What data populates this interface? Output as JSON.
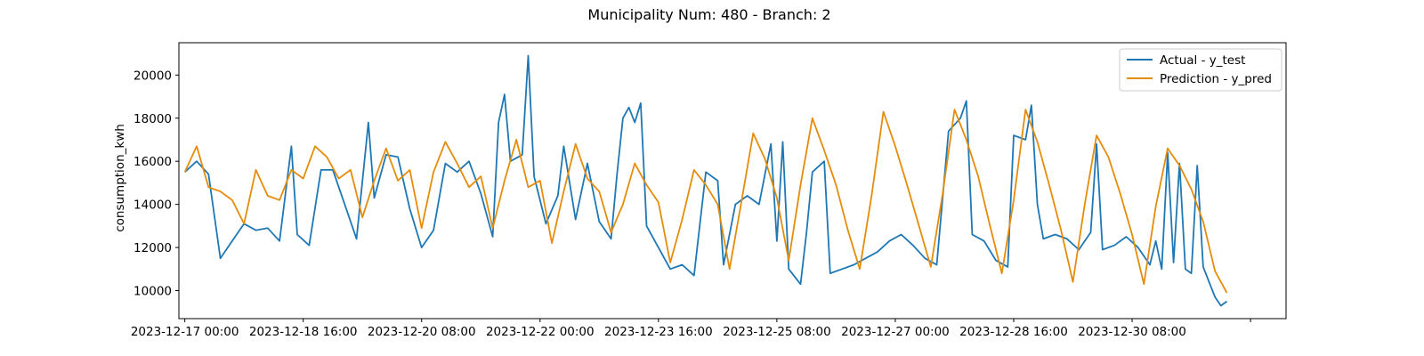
{
  "chart_data": {
    "type": "line",
    "title": "Municipality Num: 480 - Branch: 2",
    "xlabel": "",
    "ylabel": "consumption_kwh",
    "x_range": [
      "2023-12-16 22:00",
      "2024-01-01 12:00"
    ],
    "ylim": [
      8700,
      21500
    ],
    "x_tick_labels": [
      "2023-12-17 00:00",
      "2023-12-18 16:00",
      "2023-12-20 08:00",
      "2023-12-22 00:00",
      "2023-12-23 16:00",
      "2023-12-25 08:00",
      "2023-12-27 00:00",
      "2023-12-28 16:00",
      "2023-12-30 08:00",
      ""
    ],
    "x_tick_values": [
      "2023-12-17 00:00",
      "2023-12-18 16:00",
      "2023-12-20 08:00",
      "2023-12-22 00:00",
      "2023-12-23 16:00",
      "2023-12-25 08:00",
      "2023-12-27 00:00",
      "2023-12-28 16:00",
      "2023-12-30 08:00",
      "2024-01-01 00:00"
    ],
    "y_ticks": [
      10000,
      12000,
      14000,
      16000,
      18000,
      20000
    ],
    "y_tick_labels": [
      "10000",
      "12000",
      "14000",
      "16000",
      "18000",
      "20000"
    ],
    "grid": false,
    "legend_position": "top-right",
    "series": [
      {
        "name": "Actual - y_test",
        "color": "#1f77b4",
        "points": [
          [
            "2023-12-17 00:00",
            15500
          ],
          [
            "2023-12-17 04:00",
            16000
          ],
          [
            "2023-12-17 08:00",
            15400
          ],
          [
            "2023-12-17 12:00",
            11500
          ],
          [
            "2023-12-17 16:00",
            12300
          ],
          [
            "2023-12-17 20:00",
            13100
          ],
          [
            "2023-12-18 00:00",
            12800
          ],
          [
            "2023-12-18 04:00",
            12900
          ],
          [
            "2023-12-18 08:00",
            12300
          ],
          [
            "2023-12-18 12:00",
            16700
          ],
          [
            "2023-12-18 14:00",
            12600
          ],
          [
            "2023-12-18 18:00",
            12100
          ],
          [
            "2023-12-18 22:00",
            15600
          ],
          [
            "2023-12-19 02:00",
            15600
          ],
          [
            "2023-12-19 06:00",
            14000
          ],
          [
            "2023-12-19 10:00",
            12400
          ],
          [
            "2023-12-19 14:00",
            17800
          ],
          [
            "2023-12-19 16:00",
            14300
          ],
          [
            "2023-12-19 20:00",
            16300
          ],
          [
            "2023-12-20 00:00",
            16200
          ],
          [
            "2023-12-20 04:00",
            13800
          ],
          [
            "2023-12-20 08:00",
            12000
          ],
          [
            "2023-12-20 12:00",
            12800
          ],
          [
            "2023-12-20 16:00",
            15900
          ],
          [
            "2023-12-20 20:00",
            15500
          ],
          [
            "2023-12-21 00:00",
            16000
          ],
          [
            "2023-12-21 04:00",
            14500
          ],
          [
            "2023-12-21 08:00",
            12500
          ],
          [
            "2023-12-21 10:00",
            17800
          ],
          [
            "2023-12-21 12:00",
            19100
          ],
          [
            "2023-12-21 14:00",
            16000
          ],
          [
            "2023-12-21 18:00",
            16300
          ],
          [
            "2023-12-21 20:00",
            20900
          ],
          [
            "2023-12-21 22:00",
            15300
          ],
          [
            "2023-12-22 02:00",
            13100
          ],
          [
            "2023-12-22 06:00",
            14400
          ],
          [
            "2023-12-22 08:00",
            16700
          ],
          [
            "2023-12-22 12:00",
            13300
          ],
          [
            "2023-12-22 16:00",
            15900
          ],
          [
            "2023-12-22 20:00",
            13200
          ],
          [
            "2023-12-23 00:00",
            12400
          ],
          [
            "2023-12-23 02:00",
            15400
          ],
          [
            "2023-12-23 04:00",
            18000
          ],
          [
            "2023-12-23 06:00",
            18500
          ],
          [
            "2023-12-23 08:00",
            17800
          ],
          [
            "2023-12-23 10:00",
            18700
          ],
          [
            "2023-12-23 12:00",
            13000
          ],
          [
            "2023-12-23 16:00",
            12000
          ],
          [
            "2023-12-23 20:00",
            11000
          ],
          [
            "2023-12-24 00:00",
            11200
          ],
          [
            "2023-12-24 04:00",
            10700
          ],
          [
            "2023-12-24 08:00",
            15500
          ],
          [
            "2023-12-24 12:00",
            15100
          ],
          [
            "2023-12-24 14:00",
            11200
          ],
          [
            "2023-12-24 18:00",
            14000
          ],
          [
            "2023-12-24 22:00",
            14400
          ],
          [
            "2023-12-25 02:00",
            14000
          ],
          [
            "2023-12-25 06:00",
            16800
          ],
          [
            "2023-12-25 08:00",
            12300
          ],
          [
            "2023-12-25 10:00",
            16900
          ],
          [
            "2023-12-25 12:00",
            11000
          ],
          [
            "2023-12-25 16:00",
            10300
          ],
          [
            "2023-12-25 18:00",
            12700
          ],
          [
            "2023-12-25 20:00",
            15500
          ],
          [
            "2023-12-26 00:00",
            16000
          ],
          [
            "2023-12-26 02:00",
            10800
          ],
          [
            "2023-12-26 06:00",
            11000
          ],
          [
            "2023-12-26 10:00",
            11200
          ],
          [
            "2023-12-26 14:00",
            11500
          ],
          [
            "2023-12-26 18:00",
            11800
          ],
          [
            "2023-12-26 22:00",
            12300
          ],
          [
            "2023-12-27 02:00",
            12600
          ],
          [
            "2023-12-27 06:00",
            12100
          ],
          [
            "2023-12-27 10:00",
            11500
          ],
          [
            "2023-12-27 14:00",
            11200
          ],
          [
            "2023-12-27 18:00",
            17400
          ],
          [
            "2023-12-27 22:00",
            18000
          ],
          [
            "2023-12-28 00:00",
            18800
          ],
          [
            "2023-12-28 02:00",
            12600
          ],
          [
            "2023-12-28 06:00",
            12300
          ],
          [
            "2023-12-28 10:00",
            11400
          ],
          [
            "2023-12-28 14:00",
            11100
          ],
          [
            "2023-12-28 16:00",
            17200
          ],
          [
            "2023-12-28 20:00",
            17000
          ],
          [
            "2023-12-28 22:00",
            18600
          ],
          [
            "2023-12-29 00:00",
            14000
          ],
          [
            "2023-12-29 02:00",
            12400
          ],
          [
            "2023-12-29 06:00",
            12600
          ],
          [
            "2023-12-29 10:00",
            12400
          ],
          [
            "2023-12-29 14:00",
            11900
          ],
          [
            "2023-12-29 18:00",
            12700
          ],
          [
            "2023-12-29 20:00",
            16800
          ],
          [
            "2023-12-29 22:00",
            11900
          ],
          [
            "2023-12-30 02:00",
            12100
          ],
          [
            "2023-12-30 06:00",
            12500
          ],
          [
            "2023-12-30 10:00",
            12000
          ],
          [
            "2023-12-30 14:00",
            11200
          ],
          [
            "2023-12-30 16:00",
            12300
          ],
          [
            "2023-12-30 18:00",
            11000
          ],
          [
            "2023-12-30 20:00",
            16400
          ],
          [
            "2023-12-30 22:00",
            11300
          ],
          [
            "2023-12-31 00:00",
            15900
          ],
          [
            "2023-12-31 02:00",
            11000
          ],
          [
            "2023-12-31 04:00",
            10800
          ],
          [
            "2023-12-31 06:00",
            15800
          ],
          [
            "2023-12-31 08:00",
            11100
          ],
          [
            "2023-12-31 12:00",
            9700
          ],
          [
            "2023-12-31 14:00",
            9300
          ],
          [
            "2023-12-31 16:00",
            9500
          ]
        ]
      },
      {
        "name": "Prediction - y_pred",
        "color": "#e58c0a",
        "points": [
          [
            "2023-12-17 00:00",
            15500
          ],
          [
            "2023-12-17 04:00",
            16700
          ],
          [
            "2023-12-17 08:00",
            14800
          ],
          [
            "2023-12-17 12:00",
            14600
          ],
          [
            "2023-12-17 16:00",
            14200
          ],
          [
            "2023-12-17 20:00",
            13100
          ],
          [
            "2023-12-18 00:00",
            15600
          ],
          [
            "2023-12-18 04:00",
            14400
          ],
          [
            "2023-12-18 08:00",
            14200
          ],
          [
            "2023-12-18 12:00",
            15600
          ],
          [
            "2023-12-18 16:00",
            15200
          ],
          [
            "2023-12-18 20:00",
            16700
          ],
          [
            "2023-12-19 00:00",
            16200
          ],
          [
            "2023-12-19 04:00",
            15200
          ],
          [
            "2023-12-19 08:00",
            15600
          ],
          [
            "2023-12-19 12:00",
            13400
          ],
          [
            "2023-12-19 16:00",
            15100
          ],
          [
            "2023-12-19 20:00",
            16600
          ],
          [
            "2023-12-20 00:00",
            15100
          ],
          [
            "2023-12-20 04:00",
            15600
          ],
          [
            "2023-12-20 08:00",
            12900
          ],
          [
            "2023-12-20 12:00",
            15500
          ],
          [
            "2023-12-20 16:00",
            16900
          ],
          [
            "2023-12-20 20:00",
            15900
          ],
          [
            "2023-12-21 00:00",
            14800
          ],
          [
            "2023-12-21 04:00",
            15300
          ],
          [
            "2023-12-21 08:00",
            12900
          ],
          [
            "2023-12-21 12:00",
            15100
          ],
          [
            "2023-12-21 16:00",
            17000
          ],
          [
            "2023-12-21 20:00",
            14800
          ],
          [
            "2023-12-22 00:00",
            15100
          ],
          [
            "2023-12-22 04:00",
            12200
          ],
          [
            "2023-12-22 08:00",
            14600
          ],
          [
            "2023-12-22 12:00",
            16800
          ],
          [
            "2023-12-22 16:00",
            15200
          ],
          [
            "2023-12-22 20:00",
            14600
          ],
          [
            "2023-12-23 00:00",
            12700
          ],
          [
            "2023-12-23 04:00",
            14000
          ],
          [
            "2023-12-23 08:00",
            15900
          ],
          [
            "2023-12-23 12:00",
            14900
          ],
          [
            "2023-12-23 16:00",
            14100
          ],
          [
            "2023-12-23 20:00",
            11300
          ],
          [
            "2023-12-24 00:00",
            13300
          ],
          [
            "2023-12-24 04:00",
            15600
          ],
          [
            "2023-12-24 08:00",
            14900
          ],
          [
            "2023-12-24 12:00",
            14000
          ],
          [
            "2023-12-24 16:00",
            11000
          ],
          [
            "2023-12-24 20:00",
            14100
          ],
          [
            "2023-12-25 00:00",
            17300
          ],
          [
            "2023-12-25 04:00",
            16100
          ],
          [
            "2023-12-25 08:00",
            14300
          ],
          [
            "2023-12-25 12:00",
            11400
          ],
          [
            "2023-12-25 16:00",
            14900
          ],
          [
            "2023-12-25 20:00",
            18000
          ],
          [
            "2023-12-26 00:00",
            16500
          ],
          [
            "2023-12-26 04:00",
            14900
          ],
          [
            "2023-12-26 08:00",
            12800
          ],
          [
            "2023-12-26 12:00",
            11000
          ],
          [
            "2023-12-26 16:00",
            14400
          ],
          [
            "2023-12-26 20:00",
            18300
          ],
          [
            "2023-12-27 00:00",
            16700
          ],
          [
            "2023-12-27 04:00",
            14900
          ],
          [
            "2023-12-27 08:00",
            13000
          ],
          [
            "2023-12-27 12:00",
            11100
          ],
          [
            "2023-12-27 16:00",
            14500
          ],
          [
            "2023-12-27 20:00",
            18400
          ],
          [
            "2023-12-28 00:00",
            17000
          ],
          [
            "2023-12-28 04:00",
            15300
          ],
          [
            "2023-12-28 08:00",
            13000
          ],
          [
            "2023-12-28 12:00",
            10800
          ],
          [
            "2023-12-28 16:00",
            14200
          ],
          [
            "2023-12-28 20:00",
            18400
          ],
          [
            "2023-12-29 00:00",
            16900
          ],
          [
            "2023-12-29 04:00",
            14900
          ],
          [
            "2023-12-29 08:00",
            12800
          ],
          [
            "2023-12-29 12:00",
            10400
          ],
          [
            "2023-12-29 16:00",
            14000
          ],
          [
            "2023-12-29 20:00",
            17200
          ],
          [
            "2023-12-30 00:00",
            16200
          ],
          [
            "2023-12-30 04:00",
            14500
          ],
          [
            "2023-12-30 08:00",
            12600
          ],
          [
            "2023-12-30 12:00",
            10300
          ],
          [
            "2023-12-30 16:00",
            13900
          ],
          [
            "2023-12-30 20:00",
            16600
          ],
          [
            "2023-12-31 00:00",
            15800
          ],
          [
            "2023-12-31 04:00",
            14700
          ],
          [
            "2023-12-31 08:00",
            13200
          ],
          [
            "2023-12-31 12:00",
            10900
          ],
          [
            "2023-12-31 16:00",
            9900
          ]
        ]
      }
    ]
  }
}
